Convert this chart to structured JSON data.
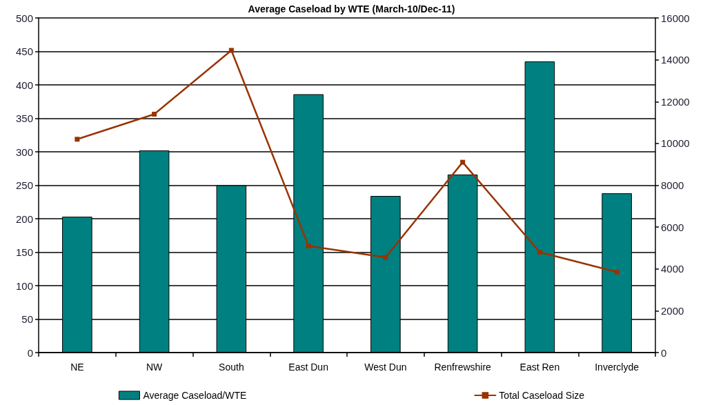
{
  "chart_data": {
    "type": "bar",
    "title": "Average Caseload by WTE (March-10/Dec-11)",
    "categories": [
      "NE",
      "NW",
      "South",
      "East Dun",
      "West Dun",
      "Renfrewshire",
      "East Ren",
      "Inverclyde"
    ],
    "series": [
      {
        "name": "Average Caseload/WTE",
        "color": "#008080",
        "values": [
          203,
          302,
          250,
          386,
          234,
          266,
          435,
          238
        ]
      },
      {
        "name": "Total Caseload Size",
        "type": "line",
        "axis": "y2",
        "color": "#993300",
        "values": [
          10200,
          11400,
          14450,
          5100,
          4550,
          9100,
          4800,
          3850
        ]
      }
    ],
    "ylim": [
      0,
      500
    ],
    "yticks": [
      0,
      50,
      100,
      150,
      200,
      250,
      300,
      350,
      400,
      450,
      500
    ],
    "y2lim": [
      0,
      16000
    ],
    "y2ticks": [
      0,
      2000,
      4000,
      6000,
      8000,
      10000,
      12000,
      14000,
      16000
    ],
    "grid": "y",
    "legend": "bottom",
    "marker": "square"
  }
}
